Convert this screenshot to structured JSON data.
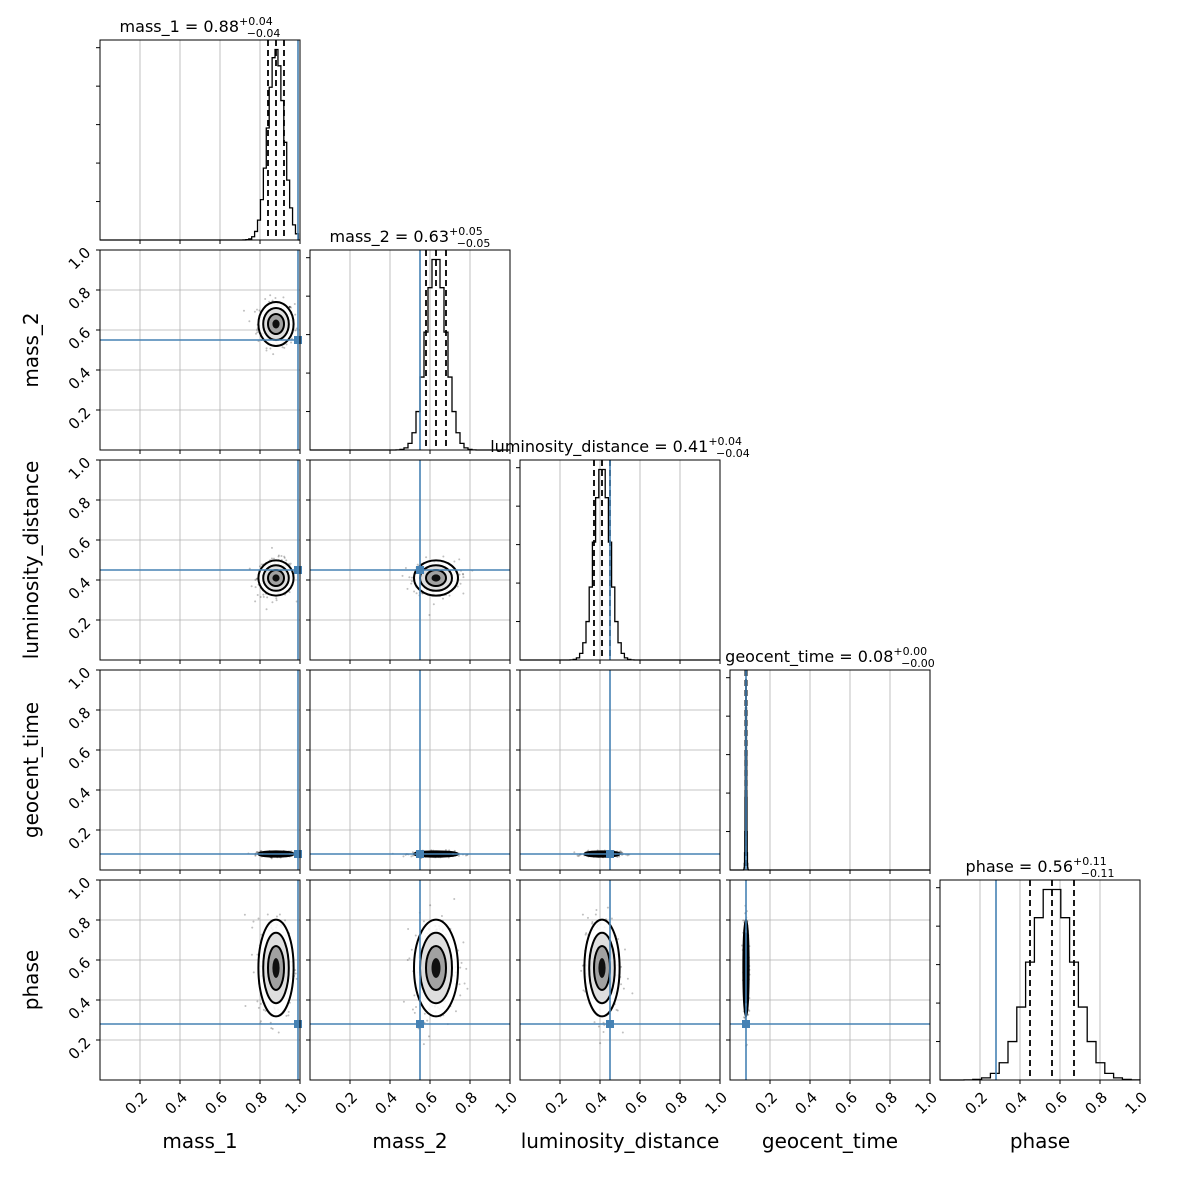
{
  "chart_data": {
    "type": "corner",
    "parameters": [
      "mass_1",
      "mass_2",
      "luminosity_distance",
      "geocent_time",
      "phase"
    ],
    "axis_range": [
      0,
      1
    ],
    "ticks": [
      0.2,
      0.4,
      0.6,
      0.8,
      1.0
    ],
    "tick_labels": [
      "0.2",
      "0.4",
      "0.6",
      "0.8",
      "1.0"
    ],
    "grid": true,
    "titles": [
      {
        "param": "mass_1",
        "text": "mass_1 = 0.88",
        "up": "+0.04",
        "down": "−0.04"
      },
      {
        "param": "mass_2",
        "text": "mass_2 = 0.63",
        "up": "+0.05",
        "down": "−0.05"
      },
      {
        "param": "luminosity_distance",
        "text": "luminosity_distance = 0.41",
        "up": "+0.04",
        "down": "−0.04"
      },
      {
        "param": "geocent_time",
        "text": "geocent_time = 0.08",
        "up": "+0.00",
        "down": "−0.00"
      },
      {
        "param": "phase",
        "text": "phase = 0.56",
        "up": "+0.11",
        "down": "−0.11"
      }
    ],
    "medians": [
      0.88,
      0.63,
      0.41,
      0.08,
      0.56
    ],
    "sigmas": [
      0.04,
      0.05,
      0.04,
      0.003,
      0.11
    ],
    "quantiles": [
      [
        0.84,
        0.88,
        0.92
      ],
      [
        0.58,
        0.63,
        0.68
      ],
      [
        0.37,
        0.41,
        0.45
      ],
      [
        0.077,
        0.08,
        0.083
      ],
      [
        0.45,
        0.56,
        0.67
      ]
    ],
    "truths": [
      0.99,
      0.55,
      0.45,
      0.08,
      0.28
    ],
    "truth_color": "#4682b4",
    "histogram_bins": 20
  }
}
